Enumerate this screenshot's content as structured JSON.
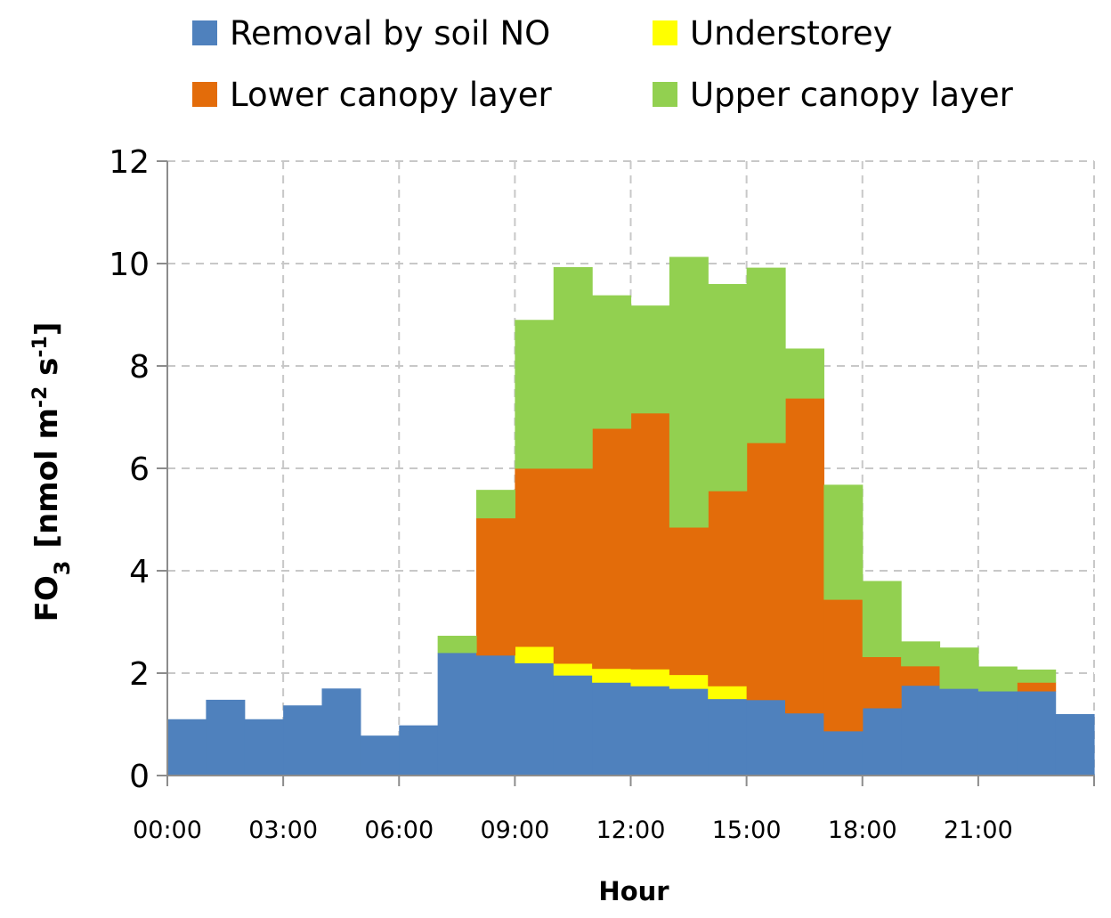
{
  "chart_data": {
    "type": "bar",
    "subtype": "stacked-step",
    "title": "",
    "xlabel": "Hour",
    "ylabel": {
      "main": "FO",
      "sub": "3",
      "units_prefix": "[nmol m",
      "units_sup1": "-2",
      "units_mid": " s",
      "units_sup2": "-1",
      "units_suffix": "]"
    },
    "ylim": [
      0,
      12
    ],
    "yticks": [
      "0",
      "2",
      "4",
      "6",
      "8",
      "10",
      "12"
    ],
    "xticks": [
      "00:00",
      "03:00",
      "06:00",
      "09:00",
      "12:00",
      "15:00",
      "18:00",
      "21:00"
    ],
    "grid": true,
    "legend_position": "top",
    "categories": [
      "0",
      "1",
      "2",
      "3",
      "4",
      "5",
      "6",
      "7",
      "8",
      "9",
      "10",
      "11",
      "12",
      "13",
      "14",
      "15",
      "16",
      "17",
      "18",
      "19",
      "20",
      "21",
      "22",
      "23"
    ],
    "series": [
      {
        "name": "Removal by soil NO",
        "color": "#4f81bd",
        "values": [
          1.1,
          1.48,
          1.1,
          1.37,
          1.7,
          0.78,
          0.98,
          2.4,
          2.35,
          2.2,
          1.96,
          1.82,
          1.75,
          1.7,
          1.5,
          1.48,
          1.22,
          0.87,
          1.32,
          1.76,
          1.7,
          1.65,
          1.65,
          1.2
        ]
      },
      {
        "name": "Understorey",
        "color": "#ffff00",
        "values": [
          0,
          0,
          0,
          0,
          0,
          0,
          0,
          0,
          0,
          0.32,
          0.23,
          0.27,
          0.33,
          0.27,
          0.25,
          0,
          0,
          0,
          0,
          0,
          0,
          0,
          0,
          0
        ]
      },
      {
        "name": "Lower canopy layer",
        "color": "#e36c0a",
        "values": [
          0,
          0,
          0,
          0,
          0,
          0,
          0,
          0,
          2.68,
          3.48,
          3.81,
          4.69,
          5.0,
          2.88,
          3.81,
          5.02,
          6.15,
          2.57,
          1.0,
          0.38,
          0,
          0,
          0.17,
          0
        ]
      },
      {
        "name": "Upper canopy layer",
        "color": "#92d050",
        "values": [
          0,
          0,
          0,
          0,
          0,
          0,
          0,
          0.33,
          0.55,
          2.9,
          3.93,
          2.6,
          2.1,
          5.28,
          4.04,
          3.42,
          0.97,
          2.24,
          1.48,
          0.48,
          0.8,
          0.48,
          0.25,
          0
        ]
      }
    ]
  }
}
